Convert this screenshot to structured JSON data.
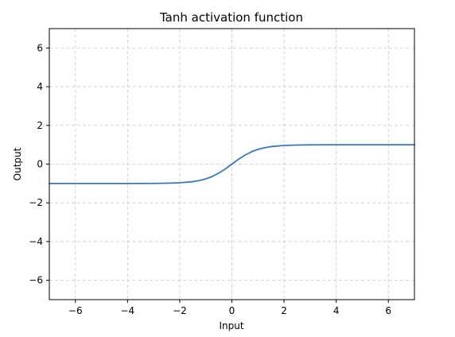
{
  "chart_data": {
    "type": "line",
    "title": "Tanh activation function",
    "xlabel": "Input",
    "ylabel": "Output",
    "xlim": [
      -7,
      7
    ],
    "ylim": [
      -7,
      7
    ],
    "grid": true,
    "line_color": "#3a78b5",
    "x_ticks": [
      -6,
      -4,
      -2,
      0,
      2,
      4,
      6
    ],
    "y_ticks": [
      -6,
      -4,
      -2,
      0,
      2,
      4,
      6
    ],
    "x_tick_labels": [
      "−6",
      "−4",
      "−2",
      "0",
      "2",
      "4",
      "6"
    ],
    "y_tick_labels": [
      "−6",
      "−4",
      "−2",
      "0",
      "2",
      "4",
      "6"
    ],
    "series": [
      {
        "x": [
          -7,
          -6,
          -5,
          -4,
          -3,
          -2.5,
          -2,
          -1.5,
          -1.25,
          -1,
          -0.75,
          -0.5,
          -0.25,
          0,
          0.25,
          0.5,
          0.75,
          1,
          1.25,
          1.5,
          2,
          2.5,
          3,
          4,
          5,
          6,
          7
        ],
        "y": [
          -1.0,
          -1.0,
          -0.9999,
          -0.9993,
          -0.9951,
          -0.9866,
          -0.964,
          -0.9051,
          -0.8483,
          -0.7616,
          -0.6351,
          -0.4621,
          -0.2449,
          0.0,
          0.2449,
          0.4621,
          0.6351,
          0.7616,
          0.8483,
          0.9051,
          0.964,
          0.9866,
          0.9951,
          0.9993,
          0.9999,
          1.0,
          1.0
        ]
      }
    ]
  }
}
